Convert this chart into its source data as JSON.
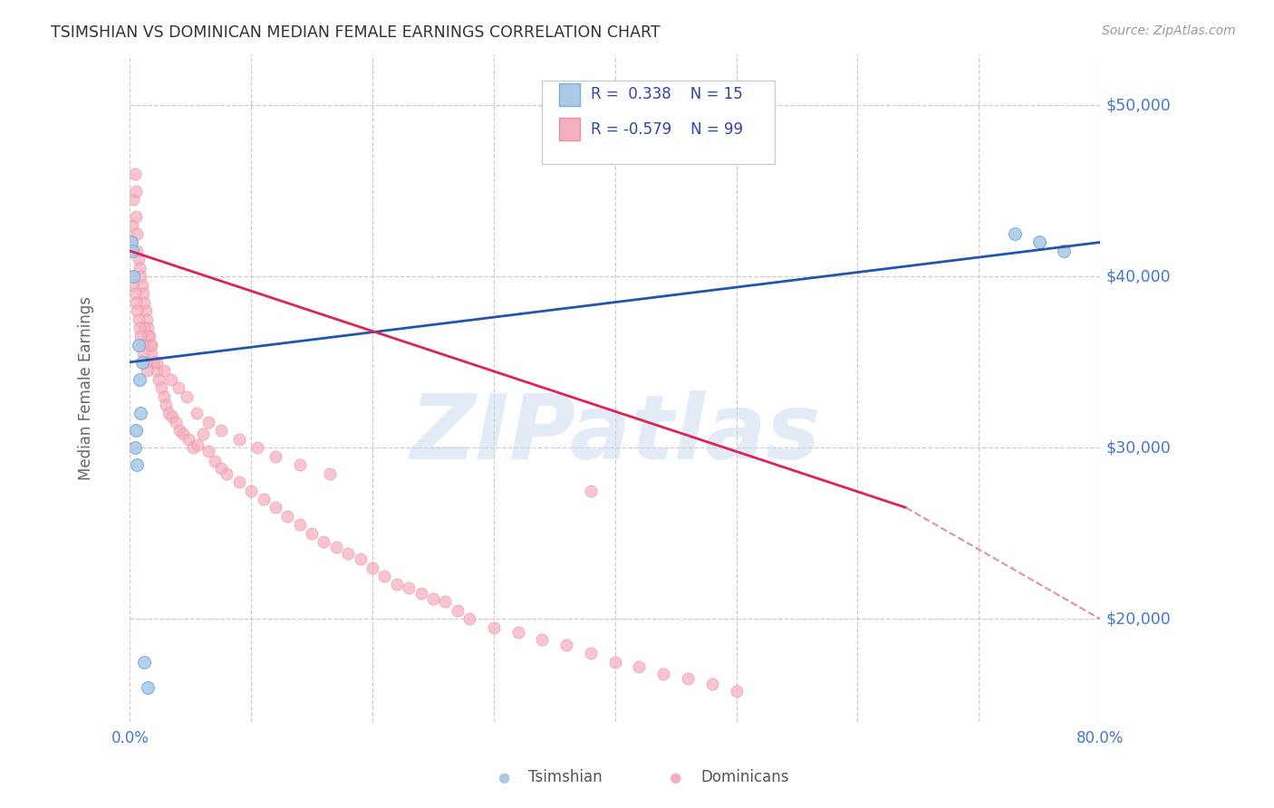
{
  "title": "TSIMSHIAN VS DOMINICAN MEDIAN FEMALE EARNINGS CORRELATION CHART",
  "source": "Source: ZipAtlas.com",
  "ylabel": "Median Female Earnings",
  "xmin": 0.0,
  "xmax": 0.8,
  "ymin": 14000,
  "ymax": 53000,
  "yticks": [
    20000,
    30000,
    40000,
    50000
  ],
  "ytick_labels": [
    "$20,000",
    "$30,000",
    "$40,000",
    "$50,000"
  ],
  "watermark": "ZIPatlas",
  "tsimshian_color": "#adc9e8",
  "tsimshian_edge": "#7aaed4",
  "tsimshian_line_color": "#2255aa",
  "dominican_color": "#f5b0bf",
  "dominican_edge": "#e890a0",
  "dominican_line_color": "#dd2255",
  "tsimshian_x": [
    0.001,
    0.002,
    0.003,
    0.004,
    0.005,
    0.006,
    0.007,
    0.008,
    0.009,
    0.01,
    0.012,
    0.015,
    0.73,
    0.75,
    0.77
  ],
  "tsimshian_y": [
    42000,
    41500,
    40000,
    30000,
    31000,
    29000,
    36000,
    34000,
    32000,
    35000,
    17500,
    16000,
    42500,
    42000,
    41500
  ],
  "dominican_x": [
    0.001,
    0.002,
    0.003,
    0.004,
    0.005,
    0.005,
    0.006,
    0.006,
    0.007,
    0.008,
    0.009,
    0.01,
    0.011,
    0.012,
    0.013,
    0.014,
    0.015,
    0.016,
    0.017,
    0.018,
    0.02,
    0.022,
    0.024,
    0.026,
    0.028,
    0.03,
    0.032,
    0.035,
    0.038,
    0.041,
    0.044,
    0.048,
    0.052,
    0.056,
    0.06,
    0.065,
    0.07,
    0.075,
    0.08,
    0.09,
    0.1,
    0.11,
    0.12,
    0.13,
    0.14,
    0.15,
    0.16,
    0.17,
    0.18,
    0.19,
    0.2,
    0.21,
    0.22,
    0.23,
    0.24,
    0.25,
    0.26,
    0.27,
    0.28,
    0.3,
    0.32,
    0.34,
    0.36,
    0.38,
    0.4,
    0.42,
    0.44,
    0.46,
    0.48,
    0.5,
    0.012,
    0.015,
    0.018,
    0.022,
    0.028,
    0.034,
    0.04,
    0.047,
    0.055,
    0.065,
    0.075,
    0.09,
    0.105,
    0.12,
    0.14,
    0.165,
    0.002,
    0.003,
    0.004,
    0.005,
    0.006,
    0.007,
    0.008,
    0.009,
    0.01,
    0.011,
    0.013,
    0.014,
    0.38
  ],
  "dominican_y": [
    42000,
    43000,
    44500,
    46000,
    45000,
    43500,
    42500,
    41500,
    41000,
    40500,
    40000,
    39500,
    39000,
    38500,
    38000,
    37500,
    37000,
    36500,
    36000,
    35500,
    35000,
    34500,
    34000,
    33500,
    33000,
    32500,
    32000,
    31800,
    31500,
    31000,
    30800,
    30500,
    30000,
    30200,
    30800,
    29800,
    29200,
    28800,
    28500,
    28000,
    27500,
    27000,
    26500,
    26000,
    25500,
    25000,
    24500,
    24200,
    23800,
    23500,
    23000,
    22500,
    22000,
    21800,
    21500,
    21200,
    21000,
    20500,
    20000,
    19500,
    19200,
    18800,
    18500,
    18000,
    17500,
    17200,
    16800,
    16500,
    16200,
    15800,
    37000,
    36500,
    36000,
    35000,
    34500,
    34000,
    33500,
    33000,
    32000,
    31500,
    31000,
    30500,
    30000,
    29500,
    29000,
    28500,
    40000,
    39500,
    39000,
    38500,
    38000,
    37500,
    37000,
    36500,
    36000,
    35500,
    35000,
    34500,
    27500
  ],
  "tsim_line_x0": 0.0,
  "tsim_line_y0": 35000,
  "tsim_line_x1": 0.8,
  "tsim_line_y1": 42000,
  "dom_line_x0": 0.0,
  "dom_line_y0": 41500,
  "dom_line_solid_x1": 0.64,
  "dom_line_y1": 26500,
  "dom_line_dash_x1": 0.8,
  "dom_line_dash_y1": 20000
}
